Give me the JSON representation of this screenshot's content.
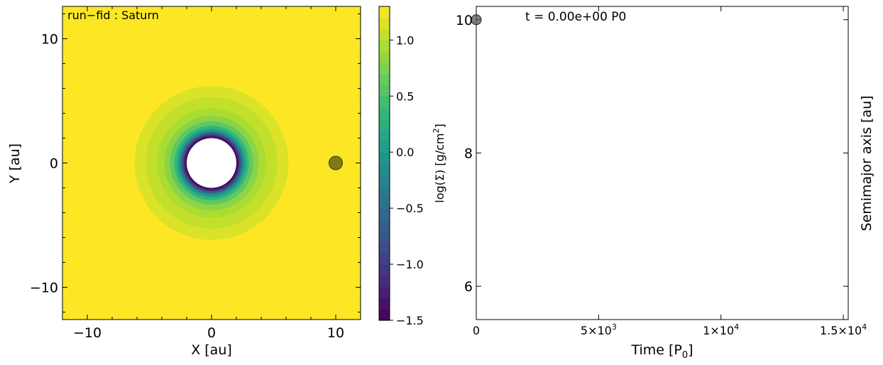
{
  "chart_data": [
    {
      "type": "heatmap",
      "title": "",
      "annotation": "run−fid : Saturn",
      "xlabel": "X [au]",
      "ylabel": "Y [au]",
      "xlim": [
        -12,
        12
      ],
      "ylim": [
        -12.5,
        12.5
      ],
      "xticks": [
        -10,
        0,
        10
      ],
      "xtick_labels": [
        "−10",
        "0",
        "10"
      ],
      "yticks": [
        10,
        0,
        -10
      ],
      "ytick_labels": [
        "10",
        "0",
        "−10"
      ],
      "disk": {
        "hole_radius_au": 2.0,
        "outer_perturbed_radius_au": 6.2,
        "rings": [
          {
            "r": 6.2,
            "value": 1.15
          },
          {
            "r": 5.3,
            "value": 1.05
          },
          {
            "r": 4.4,
            "value": 0.95
          },
          {
            "r": 3.8,
            "value": 0.8
          },
          {
            "r": 3.35,
            "value": 0.6
          },
          {
            "r": 3.0,
            "value": 0.35
          },
          {
            "r": 2.75,
            "value": 0.05
          },
          {
            "r": 2.55,
            "value": -0.35
          },
          {
            "r": 2.4,
            "value": -0.8
          },
          {
            "r": 2.25,
            "value": -1.2
          },
          {
            "r": 2.12,
            "value": -1.45
          }
        ],
        "background_value": 1.3
      },
      "planet": {
        "x": 10.0,
        "y": 0.0,
        "color": "#6b6418"
      },
      "colorbar": {
        "label": "log(Σ) [g/cm²]",
        "label_main": "log(Σ) [g/cm",
        "label_sup": "2",
        "label_end": "]",
        "vmin": -1.5,
        "vmax": 1.3,
        "ticks": [
          1.0,
          0.5,
          0.0,
          -0.5,
          -1.0,
          -1.5
        ],
        "tick_labels": [
          "1.0",
          "0.5",
          "0.0",
          "−0.5",
          "−1.0",
          "−1.5"
        ],
        "colormap": "viridis"
      }
    },
    {
      "type": "scatter",
      "title": "",
      "annotation": "t = 0.00e+00 P0",
      "xlabel": "Time [P₀]",
      "xlabel_main": "Time [P",
      "xlabel_sub": "0",
      "xlabel_end": "]",
      "ylabel": "Semimajor axis [au]",
      "xlim": [
        0,
        15200
      ],
      "ylim": [
        5.5,
        10.2
      ],
      "xticks": [
        0,
        5000,
        10000,
        15000
      ],
      "xtick_labels": [
        {
          "main": "0",
          "exp": ""
        },
        {
          "main": "5×10",
          "exp": "3"
        },
        {
          "main": "1×10",
          "exp": "4"
        },
        {
          "main": "1.5×10",
          "exp": "4"
        }
      ],
      "yticks": [
        10,
        8,
        6
      ],
      "ytick_labels": [
        "10",
        "8",
        "6"
      ],
      "points": [
        {
          "x": 0,
          "y": 10.0
        }
      ],
      "point_color": "#555555"
    }
  ]
}
